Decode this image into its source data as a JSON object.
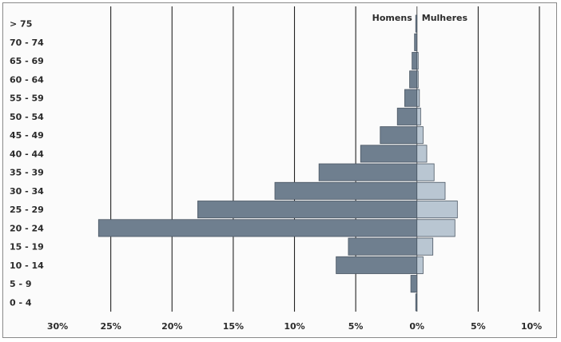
{
  "chart_data": {
    "type": "bar",
    "orientation": "horizontal-pyramid",
    "categories": [
      "0 - 4",
      "5 - 9",
      "10 - 14",
      "15 - 19",
      "20 - 24",
      "25 - 29",
      "30 - 34",
      "35 - 39",
      "40 - 44",
      "45 - 49",
      "50 - 54",
      "55 - 59",
      "60 - 64",
      "65 - 69",
      "70 - 74",
      "> 75"
    ],
    "series": [
      {
        "name": "Homens",
        "side": "left",
        "color": "#6f7f8f",
        "values": [
          0.1,
          0.5,
          6.6,
          5.6,
          26.0,
          17.9,
          11.6,
          8.0,
          4.6,
          3.0,
          1.6,
          1.0,
          0.6,
          0.4,
          0.2,
          0.1
        ]
      },
      {
        "name": "Mulheres",
        "side": "right",
        "color": "#b9c6d2",
        "values": [
          0.0,
          0.0,
          0.5,
          1.3,
          3.1,
          3.3,
          2.3,
          1.4,
          0.8,
          0.5,
          0.3,
          0.2,
          0.1,
          0.1,
          0.0,
          0.0
        ]
      }
    ],
    "x_ticks": [
      "30%",
      "25%",
      "20%",
      "15%",
      "10%",
      "5%",
      "0%",
      "5%",
      "10%"
    ],
    "xlim": [
      -30,
      10
    ],
    "grid": true,
    "legend_position": "top-center"
  }
}
